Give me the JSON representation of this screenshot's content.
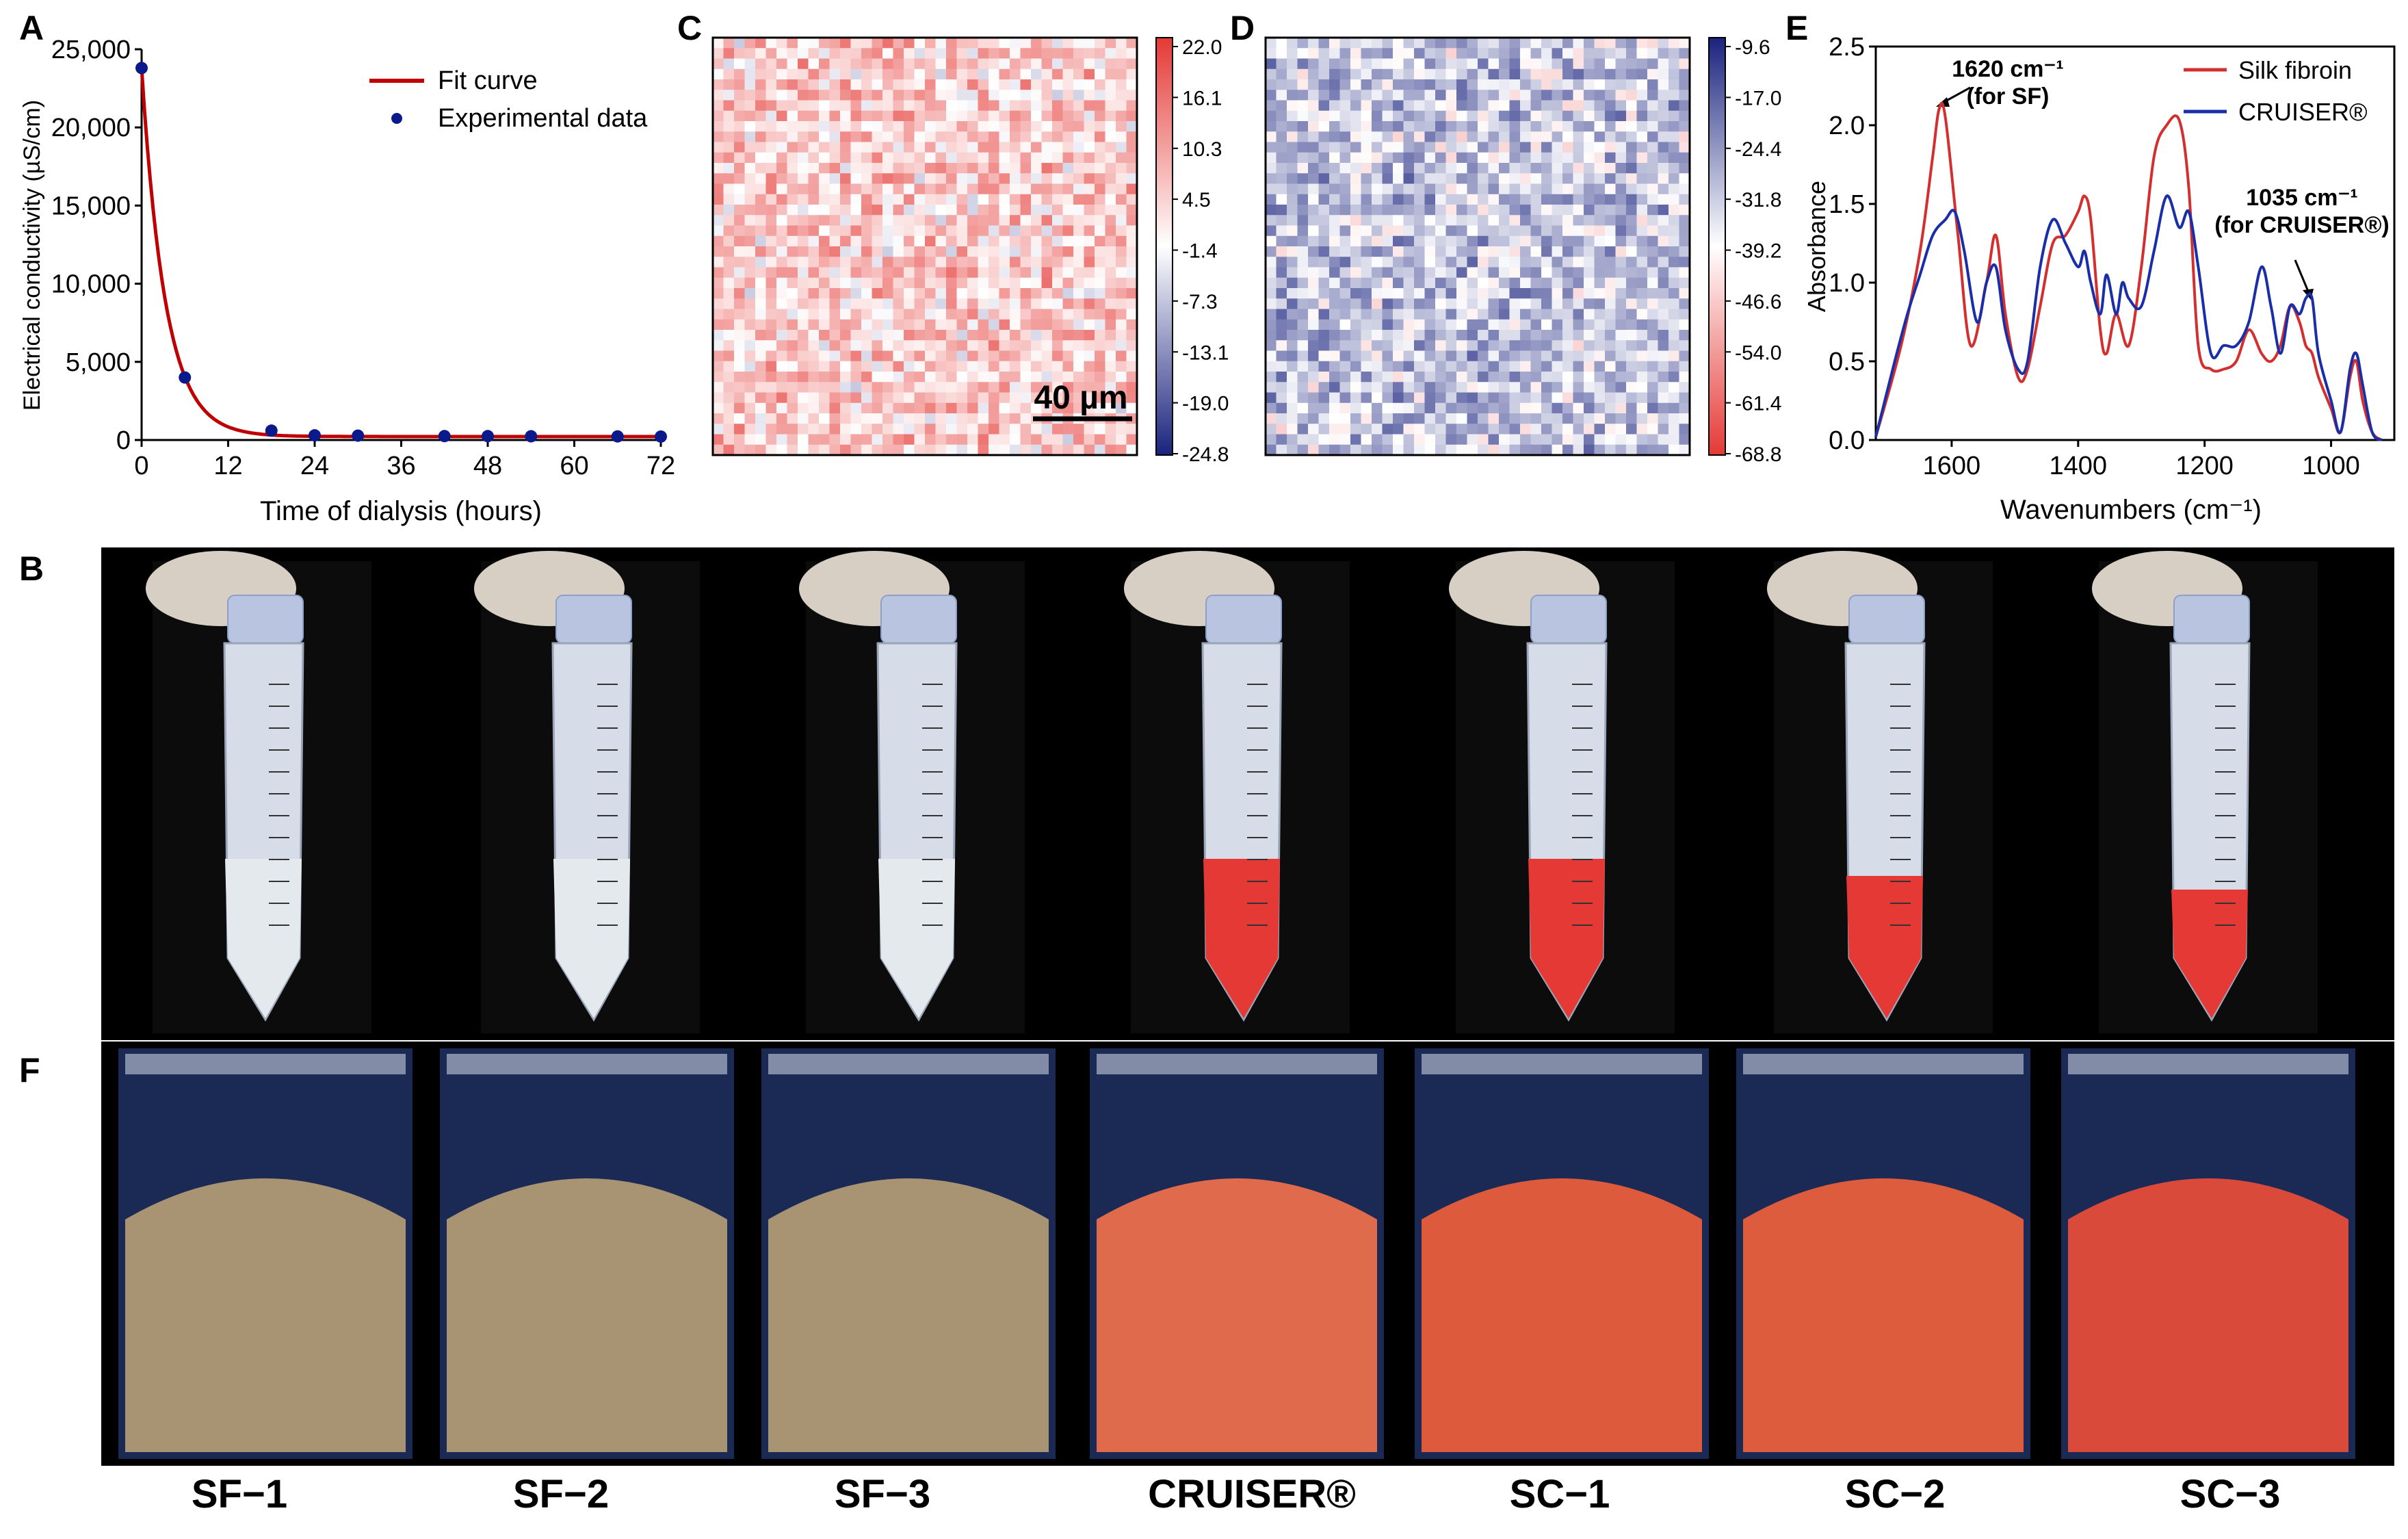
{
  "panels": {
    "a": "A",
    "b": "B",
    "c": "C",
    "d": "D",
    "e": "E",
    "f": "F"
  },
  "panel_a": {
    "chart_data": {
      "type": "scatter",
      "xlabel": "Time of dialysis (hours)",
      "ylabel": "Electrical conductivity (µS/cm)",
      "xlim": [
        0,
        72
      ],
      "ylim": [
        0,
        25000
      ],
      "x_ticks": [
        "0",
        "12",
        "24",
        "36",
        "48",
        "60",
        "72"
      ],
      "y_ticks": [
        "0",
        "5,000",
        "10,000",
        "15,000",
        "20,000",
        "25,000"
      ],
      "legend": [
        "Fit curve",
        "Experimental data"
      ],
      "legend_position": "top-right",
      "series": [
        {
          "name": "Experimental data",
          "x": [
            0,
            6,
            18,
            24,
            30,
            42,
            48,
            54,
            66,
            72
          ],
          "y": [
            23800,
            4000,
            600,
            300,
            280,
            250,
            250,
            240,
            230,
            220
          ]
        },
        {
          "name": "Fit curve",
          "model": "exponential decay",
          "y0": 220,
          "A": 23580,
          "tau": 3.3
        }
      ],
      "colors": {
        "fit": "#c00000",
        "points": "#0a1a8c"
      }
    }
  },
  "panel_c": {
    "colorbar_ticks": [
      "22.0",
      "16.1",
      "10.3",
      "4.5",
      "-1.4",
      "-7.3",
      "-13.1",
      "-19.0",
      "-24.8"
    ],
    "scale_bar": "40 µm",
    "colors": {
      "top": "#e53935",
      "mid": "#ffffff",
      "bottom": "#1a237e"
    }
  },
  "panel_d": {
    "colorbar_ticks": [
      "-9.6",
      "-17.0",
      "-24.4",
      "-31.8",
      "-39.2",
      "-46.6",
      "-54.0",
      "-61.4",
      "-68.8"
    ],
    "colors": {
      "top": "#1a237e",
      "mid": "#ffffff",
      "bottom": "#e53935"
    }
  },
  "panel_e": {
    "chart_data": {
      "type": "line",
      "xlabel": "Wavenumbers (cm⁻¹)",
      "ylabel": "Absorbance",
      "xlim": [
        1720,
        900
      ],
      "ylim": [
        0,
        2.5
      ],
      "x_ticks": [
        "1600",
        "1400",
        "1200",
        "1000"
      ],
      "y_ticks": [
        "0.0",
        "0.5",
        "1.0",
        "1.5",
        "2.0",
        "2.5"
      ],
      "legend_position": "top-right",
      "annotations": [
        {
          "line1": "1620 cm⁻¹",
          "line2": "(for SF)"
        },
        {
          "line1": "1035 cm⁻¹",
          "line2": "(for CRUISER®)"
        }
      ],
      "series": [
        {
          "name": "Silk fibroin",
          "color": "#d32f2f",
          "x": [
            1720,
            1680,
            1650,
            1630,
            1620,
            1610,
            1590,
            1570,
            1545,
            1530,
            1515,
            1495,
            1480,
            1460,
            1440,
            1420,
            1400,
            1390,
            1380,
            1365,
            1355,
            1340,
            1320,
            1300,
            1280,
            1260,
            1240,
            1225,
            1210,
            1190,
            1170,
            1150,
            1130,
            1110,
            1095,
            1080,
            1065,
            1050,
            1040,
            1030,
            1020,
            1000,
            985,
            970,
            960,
            950,
            935,
            920
          ],
          "y": [
            0.02,
            0.6,
            1.2,
            1.8,
            2.1,
            2.05,
            1.3,
            0.6,
            1.0,
            1.3,
            0.8,
            0.4,
            0.45,
            0.85,
            1.25,
            1.3,
            1.45,
            1.55,
            1.4,
            0.7,
            0.55,
            0.8,
            0.6,
            1.1,
            1.8,
            2.0,
            2.03,
            1.6,
            0.6,
            0.45,
            0.45,
            0.5,
            0.7,
            0.55,
            0.5,
            0.6,
            0.85,
            0.75,
            0.6,
            0.55,
            0.4,
            0.2,
            0.05,
            0.4,
            0.5,
            0.25,
            0.05,
            0.0
          ]
        },
        {
          "name": "CRUISER®",
          "color": "#1a2ea8",
          "x": [
            1720,
            1690,
            1670,
            1650,
            1630,
            1610,
            1595,
            1580,
            1560,
            1545,
            1530,
            1515,
            1495,
            1480,
            1460,
            1440,
            1420,
            1400,
            1390,
            1380,
            1365,
            1355,
            1340,
            1330,
            1320,
            1300,
            1280,
            1260,
            1240,
            1225,
            1210,
            1190,
            1170,
            1150,
            1130,
            1110,
            1095,
            1080,
            1065,
            1050,
            1040,
            1030,
            1020,
            1000,
            985,
            970,
            960,
            950,
            935,
            920
          ],
          "y": [
            0.02,
            0.5,
            0.8,
            1.05,
            1.3,
            1.4,
            1.45,
            1.2,
            0.75,
            1.0,
            1.1,
            0.7,
            0.45,
            0.5,
            1.1,
            1.4,
            1.25,
            1.1,
            1.2,
            1.0,
            0.8,
            1.05,
            0.8,
            1.0,
            0.9,
            0.85,
            1.2,
            1.55,
            1.35,
            1.45,
            1.1,
            0.55,
            0.6,
            0.6,
            0.75,
            1.1,
            0.85,
            0.55,
            0.85,
            0.8,
            0.9,
            0.9,
            0.55,
            0.25,
            0.05,
            0.45,
            0.55,
            0.35,
            0.05,
            0.0
          ]
        }
      ]
    }
  },
  "photo_labels": [
    "SF−1",
    "SF−2",
    "SF−3",
    "CRUISER®",
    "SC−1",
    "SC−2",
    "SC−3"
  ]
}
